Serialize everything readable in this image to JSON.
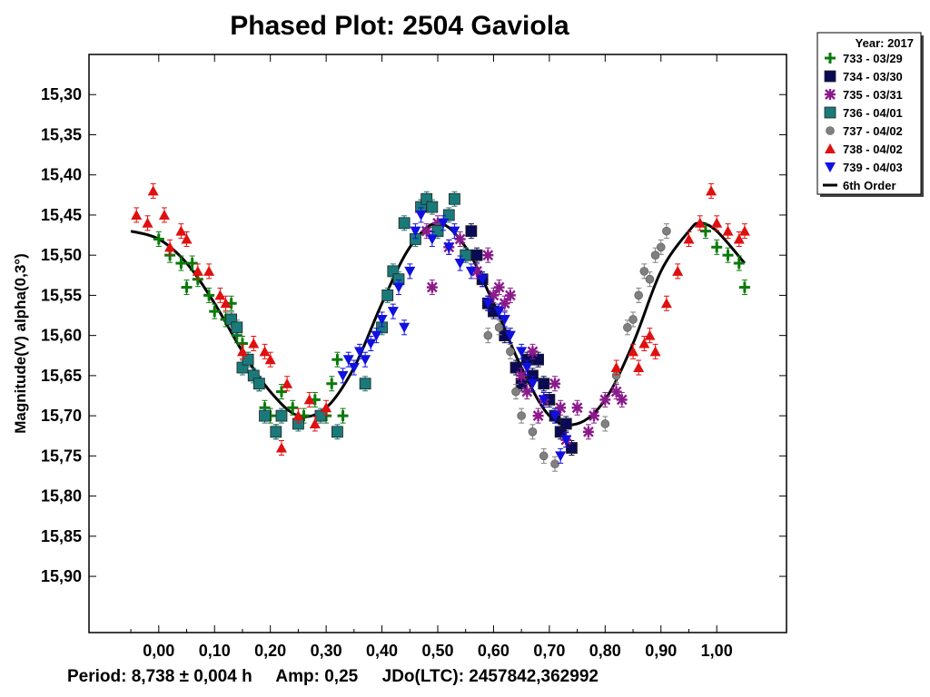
{
  "chart_data": {
    "type": "scatter",
    "title": "Phased Plot: 2504 Gaviola",
    "xlabel": "",
    "ylabel": "Magnitude(V) alpha(0,3°)",
    "xlim": [
      -0.125,
      1.125
    ],
    "ylim": [
      15.97,
      15.25
    ],
    "x_ticks": [
      "0,00",
      "0,10",
      "0,20",
      "0,30",
      "0,40",
      "0,50",
      "0,60",
      "0,70",
      "0,80",
      "0,90",
      "1,00"
    ],
    "x_tick_values": [
      0.0,
      0.1,
      0.2,
      0.3,
      0.4,
      0.5,
      0.6,
      0.7,
      0.8,
      0.9,
      1.0
    ],
    "y_ticks": [
      "15,30",
      "15,35",
      "15,40",
      "15,45",
      "15,50",
      "15,55",
      "15,60",
      "15,65",
      "15,70",
      "15,75",
      "15,80",
      "15,85",
      "15,90"
    ],
    "y_tick_values": [
      15.3,
      15.35,
      15.4,
      15.45,
      15.5,
      15.55,
      15.6,
      15.65,
      15.7,
      15.75,
      15.8,
      15.85,
      15.9
    ],
    "legend": {
      "title": "Year: 2017",
      "position": "right-outside-top",
      "entries": [
        {
          "label": "733 - 03/29",
          "marker": "plus",
          "color": "#0a7a0a"
        },
        {
          "label": "734 - 03/30",
          "marker": "square",
          "color": "#0a0a55"
        },
        {
          "label": "735 - 03/31",
          "marker": "asterisk",
          "color": "#8a1a8a"
        },
        {
          "label": "736 - 04/01",
          "marker": "square",
          "color": "#1a7a7a"
        },
        {
          "label": "737 - 04/02",
          "marker": "circle",
          "color": "#808080"
        },
        {
          "label": "738 - 04/02",
          "marker": "triangle-up",
          "color": "#e01010"
        },
        {
          "label": "739 - 04/03",
          "marker": "triangle-down",
          "color": "#1010e0"
        },
        {
          "label": "6th Order",
          "marker": "line",
          "color": "#000000"
        }
      ]
    },
    "fit_curve": {
      "name": "6th Order",
      "x": [
        -0.05,
        0.0,
        0.05,
        0.1,
        0.15,
        0.2,
        0.25,
        0.3,
        0.35,
        0.4,
        0.45,
        0.5,
        0.55,
        0.6,
        0.65,
        0.7,
        0.75,
        0.8,
        0.85,
        0.9,
        0.95,
        0.97,
        1.0,
        1.05
      ],
      "y": [
        15.47,
        15.48,
        15.51,
        15.56,
        15.62,
        15.67,
        15.7,
        15.69,
        15.64,
        15.56,
        15.49,
        15.46,
        15.49,
        15.56,
        15.64,
        15.7,
        15.71,
        15.68,
        15.61,
        15.52,
        15.47,
        15.46,
        15.47,
        15.51
      ]
    },
    "series": [
      {
        "name": "733 - 03/29",
        "points": [
          [
            0.0,
            15.48
          ],
          [
            0.02,
            15.5
          ],
          [
            0.04,
            15.51
          ],
          [
            0.05,
            15.54
          ],
          [
            0.06,
            15.51
          ],
          [
            0.07,
            15.53
          ],
          [
            0.09,
            15.55
          ],
          [
            0.1,
            15.57
          ],
          [
            0.12,
            15.58
          ],
          [
            0.13,
            15.56
          ],
          [
            0.14,
            15.6
          ],
          [
            0.15,
            15.61
          ],
          [
            0.16,
            15.63
          ],
          [
            0.18,
            15.66
          ],
          [
            0.19,
            15.69
          ],
          [
            0.2,
            15.7
          ],
          [
            0.21,
            15.72
          ],
          [
            0.22,
            15.67
          ],
          [
            0.24,
            15.69
          ],
          [
            0.26,
            15.7
          ],
          [
            0.28,
            15.68
          ],
          [
            0.3,
            15.7
          ],
          [
            0.31,
            15.66
          ],
          [
            0.32,
            15.63
          ],
          [
            0.33,
            15.7
          ],
          [
            0.98,
            15.47
          ],
          [
            1.0,
            15.49
          ],
          [
            1.02,
            15.5
          ],
          [
            1.04,
            15.51
          ],
          [
            1.05,
            15.54
          ]
        ]
      },
      {
        "name": "734 - 03/30",
        "points": [
          [
            0.56,
            15.47
          ],
          [
            0.57,
            15.5
          ],
          [
            0.58,
            15.53
          ],
          [
            0.59,
            15.56
          ],
          [
            0.6,
            15.57
          ],
          [
            0.62,
            15.6
          ],
          [
            0.64,
            15.64
          ],
          [
            0.65,
            15.66
          ],
          [
            0.66,
            15.63
          ],
          [
            0.67,
            15.65
          ],
          [
            0.68,
            15.63
          ],
          [
            0.69,
            15.66
          ],
          [
            0.7,
            15.68
          ],
          [
            0.71,
            15.7
          ],
          [
            0.72,
            15.72
          ],
          [
            0.73,
            15.71
          ],
          [
            0.74,
            15.74
          ]
        ]
      },
      {
        "name": "735 - 03/31",
        "points": [
          [
            0.47,
            15.44
          ],
          [
            0.48,
            15.47
          ],
          [
            0.49,
            15.54
          ],
          [
            0.5,
            15.46
          ],
          [
            0.52,
            15.49
          ],
          [
            0.54,
            15.48
          ],
          [
            0.55,
            15.5
          ],
          [
            0.57,
            15.52
          ],
          [
            0.59,
            15.5
          ],
          [
            0.6,
            15.55
          ],
          [
            0.61,
            15.54
          ],
          [
            0.62,
            15.56
          ],
          [
            0.63,
            15.55
          ],
          [
            0.65,
            15.65
          ],
          [
            0.66,
            15.67
          ],
          [
            0.67,
            15.62
          ],
          [
            0.68,
            15.7
          ],
          [
            0.69,
            15.68
          ],
          [
            0.71,
            15.66
          ],
          [
            0.72,
            15.69
          ],
          [
            0.73,
            15.73
          ],
          [
            0.75,
            15.69
          ],
          [
            0.77,
            15.72
          ],
          [
            0.78,
            15.7
          ],
          [
            0.8,
            15.68
          ],
          [
            0.82,
            15.67
          ],
          [
            0.83,
            15.68
          ]
        ]
      },
      {
        "name": "736 - 04/01",
        "points": [
          [
            0.13,
            15.58
          ],
          [
            0.14,
            15.59
          ],
          [
            0.15,
            15.64
          ],
          [
            0.16,
            15.63
          ],
          [
            0.17,
            15.65
          ],
          [
            0.18,
            15.66
          ],
          [
            0.19,
            15.7
          ],
          [
            0.21,
            15.72
          ],
          [
            0.22,
            15.7
          ],
          [
            0.25,
            15.71
          ],
          [
            0.29,
            15.7
          ],
          [
            0.32,
            15.72
          ],
          [
            0.37,
            15.66
          ],
          [
            0.4,
            15.59
          ],
          [
            0.41,
            15.55
          ],
          [
            0.42,
            15.52
          ],
          [
            0.43,
            15.53
          ],
          [
            0.44,
            15.46
          ],
          [
            0.46,
            15.48
          ],
          [
            0.47,
            15.44
          ],
          [
            0.48,
            15.43
          ],
          [
            0.49,
            15.44
          ],
          [
            0.5,
            15.47
          ],
          [
            0.52,
            15.45
          ],
          [
            0.53,
            15.43
          ],
          [
            0.55,
            15.5
          ]
        ]
      },
      {
        "name": "737 - 04/02",
        "points": [
          [
            0.59,
            15.6
          ],
          [
            0.61,
            15.59
          ],
          [
            0.63,
            15.62
          ],
          [
            0.64,
            15.67
          ],
          [
            0.65,
            15.7
          ],
          [
            0.67,
            15.72
          ],
          [
            0.69,
            15.75
          ],
          [
            0.71,
            15.76
          ],
          [
            0.8,
            15.71
          ],
          [
            0.82,
            15.65
          ],
          [
            0.84,
            15.59
          ],
          [
            0.85,
            15.58
          ],
          [
            0.86,
            15.55
          ],
          [
            0.87,
            15.52
          ],
          [
            0.88,
            15.53
          ],
          [
            0.89,
            15.5
          ],
          [
            0.9,
            15.49
          ],
          [
            0.91,
            15.47
          ]
        ]
      },
      {
        "name": "738 - 04/02",
        "points": [
          [
            -0.04,
            15.45
          ],
          [
            -0.02,
            15.46
          ],
          [
            -0.01,
            15.42
          ],
          [
            0.01,
            15.45
          ],
          [
            0.02,
            15.49
          ],
          [
            0.04,
            15.47
          ],
          [
            0.05,
            15.48
          ],
          [
            0.07,
            15.52
          ],
          [
            0.09,
            15.52
          ],
          [
            0.11,
            15.55
          ],
          [
            0.12,
            15.56
          ],
          [
            0.15,
            15.62
          ],
          [
            0.17,
            15.61
          ],
          [
            0.19,
            15.62
          ],
          [
            0.2,
            15.63
          ],
          [
            0.22,
            15.74
          ],
          [
            0.23,
            15.66
          ],
          [
            0.25,
            15.7
          ],
          [
            0.27,
            15.68
          ],
          [
            0.28,
            15.71
          ],
          [
            0.3,
            15.69
          ],
          [
            0.82,
            15.64
          ],
          [
            0.85,
            15.62
          ],
          [
            0.86,
            15.64
          ],
          [
            0.87,
            15.61
          ],
          [
            0.88,
            15.6
          ],
          [
            0.89,
            15.62
          ],
          [
            0.91,
            15.56
          ],
          [
            0.93,
            15.52
          ],
          [
            0.95,
            15.48
          ],
          [
            0.97,
            15.46
          ],
          [
            0.99,
            15.42
          ],
          [
            1.0,
            15.46
          ],
          [
            1.02,
            15.47
          ],
          [
            1.04,
            15.48
          ],
          [
            1.05,
            15.47
          ]
        ]
      },
      {
        "name": "739 - 04/03",
        "points": [
          [
            0.33,
            15.65
          ],
          [
            0.34,
            15.63
          ],
          [
            0.35,
            15.64
          ],
          [
            0.36,
            15.62
          ],
          [
            0.37,
            15.63
          ],
          [
            0.38,
            15.61
          ],
          [
            0.39,
            15.6
          ],
          [
            0.4,
            15.58
          ],
          [
            0.42,
            15.57
          ],
          [
            0.43,
            15.54
          ],
          [
            0.44,
            15.59
          ],
          [
            0.45,
            15.52
          ],
          [
            0.46,
            15.47
          ],
          [
            0.47,
            15.45
          ],
          [
            0.49,
            15.48
          ],
          [
            0.51,
            15.46
          ],
          [
            0.52,
            15.49
          ],
          [
            0.53,
            15.47
          ],
          [
            0.54,
            15.51
          ],
          [
            0.56,
            15.52
          ],
          [
            0.58,
            15.53
          ],
          [
            0.59,
            15.56
          ],
          [
            0.61,
            15.57
          ],
          [
            0.62,
            15.58
          ],
          [
            0.63,
            15.6
          ],
          [
            0.65,
            15.62
          ],
          [
            0.66,
            15.64
          ],
          [
            0.67,
            15.66
          ],
          [
            0.69,
            15.68
          ],
          [
            0.71,
            15.7
          ],
          [
            0.72,
            15.75
          ],
          [
            0.73,
            15.73
          ]
        ]
      }
    ]
  },
  "footer": {
    "period": "Period: 8,738 ± 0,004 h",
    "amp": "Amp: 0,25",
    "jdo": "JDo(LTC): 2457842,362992"
  }
}
